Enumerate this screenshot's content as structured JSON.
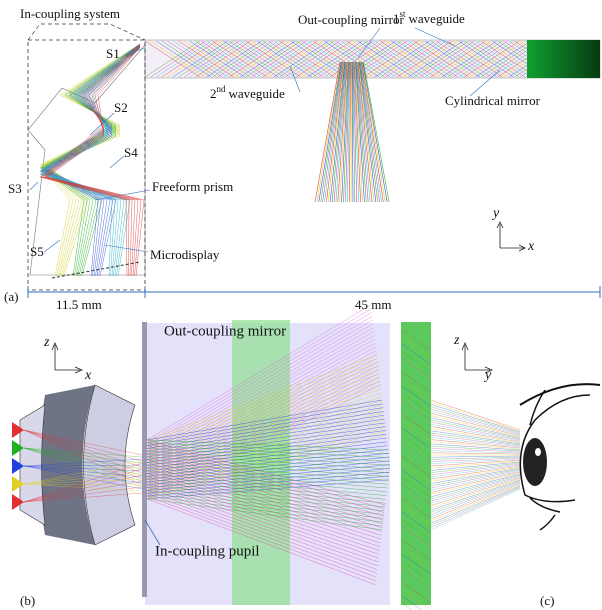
{
  "panel_a": {
    "label": "(a)",
    "in_coupling_system": "In-coupling system",
    "surfaces": [
      "S1",
      "S2",
      "S3",
      "S4",
      "S5"
    ],
    "out_coupling_mirror": "Out-coupling mirror",
    "waveguide_1": {
      "number": "1",
      "suffix": "st",
      "text": "waveguide"
    },
    "waveguide_2": {
      "number": "2",
      "suffix": "nd",
      "text": "waveguide"
    },
    "cylindrical_mirror": "Cylindrical mirror",
    "freeform_prism": "Freeform prism",
    "microdisplay": "Microdisplay",
    "axis_y": "y",
    "axis_x": "x",
    "dimension_left": "11.5 mm",
    "dimension_right": "45 mm"
  },
  "panel_b": {
    "label": "(b)",
    "axis_z": "z",
    "axis_x": "x",
    "out_coupling_mirror": "Out-coupling mirror",
    "in_coupling_pupil": "In-coupling pupil"
  },
  "panel_c": {
    "label": "(c)",
    "axis_z": "z",
    "axis_y": "y"
  }
}
